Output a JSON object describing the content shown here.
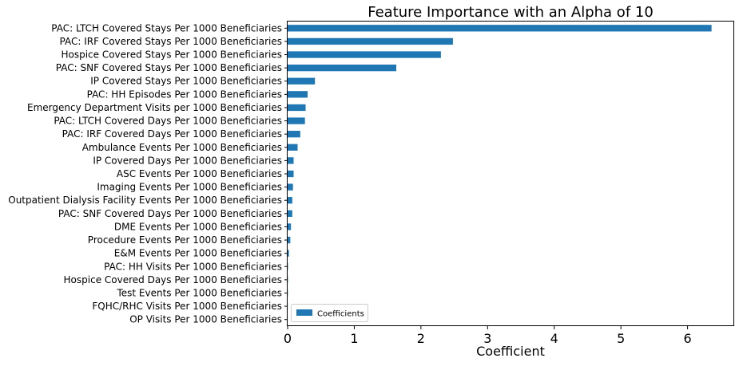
{
  "chart_data": {
    "type": "bar",
    "orientation": "horizontal",
    "title": "Feature Importance with an Alpha of 10",
    "xlabel": "Coefficient",
    "ylabel": "",
    "xlim": [
      0,
      6.7
    ],
    "xticks": [
      0,
      1,
      2,
      3,
      4,
      5,
      6
    ],
    "grid": false,
    "legend_position": "lower-left",
    "bar_color": "#1f77b4",
    "categories": [
      "PAC: LTCH Covered Stays Per 1000 Beneficiaries",
      "PAC: IRF Covered Stays Per 1000 Beneficiaries",
      "Hospice Covered Stays Per 1000 Beneficiaries",
      "PAC: SNF Covered Stays Per 1000 Beneficiaries",
      "IP Covered Stays Per 1000 Beneficiaries",
      "PAC: HH Episodes Per 1000 Beneficiaries",
      "Emergency Department Visits per 1000 Beneficiaries",
      "PAC: LTCH Covered Days Per 1000 Beneficiaries",
      "PAC: IRF Covered Days Per 1000 Beneficiaries",
      "Ambulance Events Per 1000 Beneficiaries",
      "IP Covered Days Per 1000 Beneficiaries",
      "ASC Events Per 1000 Beneficiaries",
      "Imaging Events Per 1000 Beneficiaries",
      "Outpatient Dialysis Facility Events Per 1000 Beneficiaries",
      "PAC: SNF Covered Days Per 1000 Beneficiaries",
      "DME Events Per 1000 Beneficiaries",
      "Procedure Events Per 1000 Beneficiaries",
      "E&M Events Per 1000 Beneficiaries",
      "PAC: HH Visits Per 1000 Beneficiaries",
      "Hospice Covered Days Per 1000 Beneficiaries",
      "Test Events Per 1000 Beneficiaries",
      "FQHC/RHC Visits Per 1000 Beneficiaries",
      "OP Visits Per 1000 Beneficiaries"
    ],
    "series": [
      {
        "name": "Coefficients",
        "values": [
          6.36,
          2.48,
          2.3,
          1.63,
          0.41,
          0.3,
          0.27,
          0.26,
          0.19,
          0.15,
          0.09,
          0.09,
          0.08,
          0.07,
          0.07,
          0.05,
          0.04,
          0.02,
          0.005,
          0.004,
          0.003,
          0.002,
          0.001
        ]
      }
    ]
  }
}
